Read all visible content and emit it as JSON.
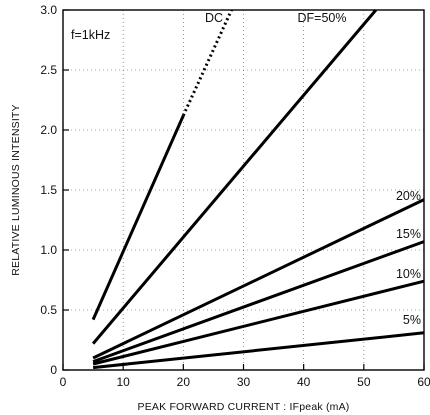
{
  "chart_data": {
    "type": "line",
    "xlabel": "PEAK FORWARD CURRENT : IFpeak (mA)",
    "ylabel": "RELATIVE LUMINOUS INTENSITY",
    "xlim": [
      0,
      60
    ],
    "ylim": [
      0,
      3.0
    ],
    "xticks": [
      0,
      10,
      20,
      30,
      40,
      50,
      60
    ],
    "yticks": [
      {
        "value": 0,
        "label": "0"
      },
      {
        "value": 0.5,
        "label": "0.5"
      },
      {
        "value": 1.0,
        "label": "1.0"
      },
      {
        "value": 1.5,
        "label": "1.5"
      },
      {
        "value": 2.0,
        "label": "2.0"
      },
      {
        "value": 2.5,
        "label": "2.5"
      },
      {
        "value": 3.0,
        "label": "3.0"
      }
    ],
    "grid": true,
    "annotation": "f=1kHz",
    "series": [
      {
        "name": "DC",
        "x": [
          5,
          20
        ],
        "y": [
          0.42,
          2.12
        ],
        "dotted_extension": {
          "x": [
            20,
            28
          ],
          "y": [
            2.12,
            3.0
          ]
        }
      },
      {
        "name": "DF=50%",
        "x": [
          5,
          52
        ],
        "y": [
          0.22,
          3.0
        ]
      },
      {
        "name": "20%",
        "x": [
          5,
          60
        ],
        "y": [
          0.1,
          1.42
        ]
      },
      {
        "name": "15%",
        "x": [
          5,
          60
        ],
        "y": [
          0.07,
          1.07
        ]
      },
      {
        "name": "10%",
        "x": [
          5,
          60
        ],
        "y": [
          0.05,
          0.74
        ]
      },
      {
        "name": "5%",
        "x": [
          5,
          60
        ],
        "y": [
          0.02,
          0.31
        ]
      }
    ]
  }
}
